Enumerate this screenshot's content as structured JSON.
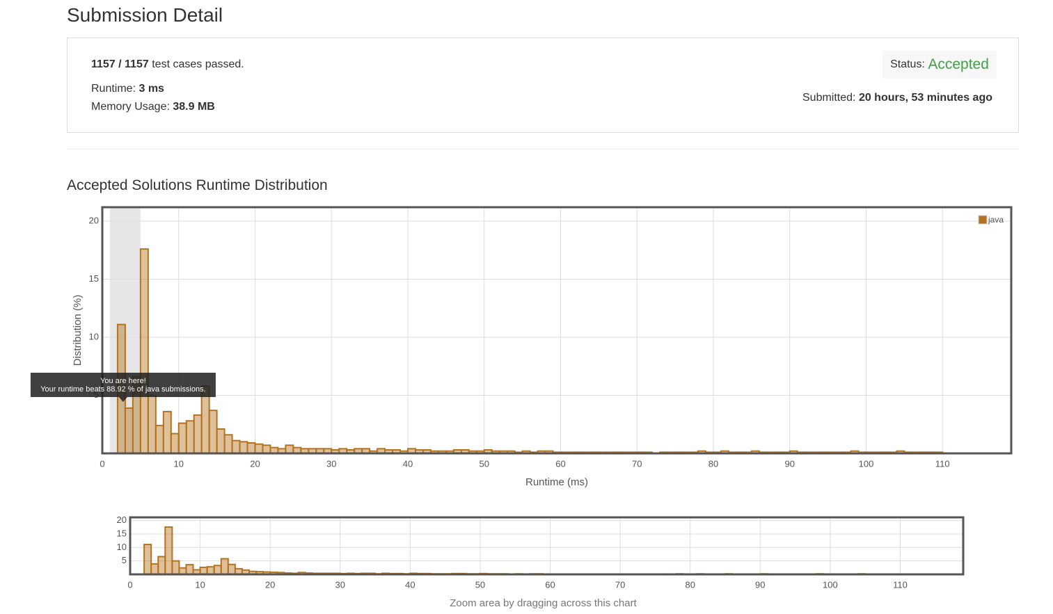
{
  "header": {
    "title": "Submission Detail"
  },
  "summary": {
    "passed": "1157 / 1157",
    "passed_text": "test cases passed.",
    "runtime_label": "Runtime:",
    "runtime": "3 ms",
    "memory_label": "Memory Usage:",
    "memory": "38.9 MB",
    "status_label": "Status:",
    "status": "Accepted",
    "submitted_label": "Submitted:",
    "submitted": "20 hours, 53 minutes ago"
  },
  "chart_data": {
    "type": "histogram",
    "title": "Accepted Solutions Runtime Distribution",
    "x_label": "Runtime (ms)",
    "y_label": "Distribution (%)",
    "bins": [
      2,
      3,
      4,
      5,
      6,
      7,
      8,
      9,
      10,
      11,
      12,
      13,
      14,
      15,
      16,
      17,
      18,
      19,
      20,
      21,
      22,
      23,
      24,
      25,
      26,
      27,
      28,
      29,
      30,
      31,
      32,
      33,
      34,
      35,
      36,
      37,
      38,
      39,
      40,
      41,
      42,
      43,
      44,
      45,
      46,
      47,
      48,
      49,
      50,
      51,
      52,
      53,
      54,
      55,
      56,
      57,
      58,
      59,
      60,
      61,
      62,
      63,
      64,
      65,
      66,
      67,
      68,
      69,
      70,
      71,
      72,
      73,
      74,
      75,
      76,
      77,
      78,
      79,
      80,
      81,
      82,
      83,
      84,
      85,
      86,
      87,
      88,
      89,
      90,
      91,
      92,
      93,
      94,
      95,
      96,
      97,
      98,
      99,
      100,
      101,
      102,
      103,
      104,
      105,
      106,
      107,
      108,
      109,
      110
    ],
    "series": [
      {
        "name": "java",
        "color": "#b5731f",
        "values": [
          11.1,
          3.9,
          6.6,
          17.6,
          5.0,
          2.4,
          3.6,
          1.7,
          2.6,
          2.8,
          3.3,
          5.8,
          3.7,
          2.1,
          1.6,
          1.1,
          1.0,
          0.9,
          0.8,
          0.7,
          0.5,
          0.4,
          0.7,
          0.5,
          0.4,
          0.4,
          0.4,
          0.4,
          0.3,
          0.4,
          0.3,
          0.4,
          0.4,
          0.2,
          0.4,
          0.3,
          0.3,
          0.2,
          0.4,
          0.3,
          0.3,
          0.2,
          0.2,
          0.2,
          0.3,
          0.3,
          0.2,
          0.2,
          0.3,
          0.2,
          0.2,
          0.2,
          0.1,
          0.2,
          0.1,
          0.2,
          0.2,
          0.1,
          0.1,
          0.1,
          0.1,
          0.1,
          0.1,
          0.1,
          0.1,
          0.1,
          0.1,
          0.1,
          0.1,
          0.1,
          0,
          0.1,
          0.1,
          0.1,
          0.1,
          0.1,
          0.2,
          0.1,
          0.1,
          0.2,
          0.1,
          0.1,
          0.1,
          0.2,
          0.1,
          0.1,
          0.1,
          0.1,
          0.2,
          0.1,
          0.1,
          0.1,
          0.1,
          0.1,
          0.1,
          0.1,
          0.2,
          0.1,
          0.1,
          0.1,
          0.1,
          0.1,
          0.2,
          0.1,
          0.1,
          0.1,
          0.1,
          0.1
        ]
      }
    ],
    "xlim": [
      0,
      119
    ],
    "ylim": [
      0,
      21.2
    ],
    "xticks": [
      0,
      10,
      20,
      30,
      40,
      50,
      60,
      70,
      80,
      90,
      100,
      110
    ],
    "yticks": [
      5,
      10,
      15,
      20
    ],
    "grid": true,
    "legend": "top-right",
    "highlight": [
      1,
      5
    ],
    "tooltip": {
      "title": "You are here!",
      "text": "Your runtime beats 88.92 % of java submissions."
    },
    "overview_note": "Zoom area by dragging across this chart"
  }
}
